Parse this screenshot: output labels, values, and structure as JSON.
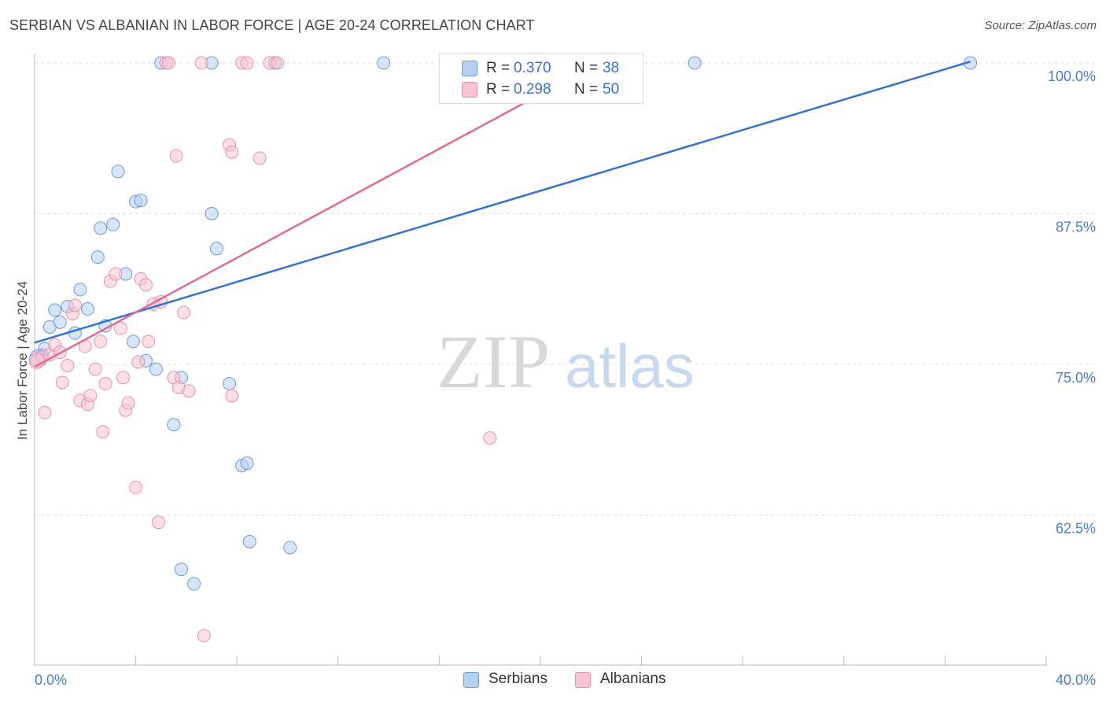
{
  "title": "SERBIAN VS ALBANIAN IN LABOR FORCE | AGE 20-24 CORRELATION CHART",
  "source": "Source: ZipAtlas.com",
  "watermark": {
    "zip": "ZIP",
    "atlas": "atlas"
  },
  "colors": {
    "serbian_fill": "#b8d0f0",
    "serbian_stroke": "#6a9ad8",
    "serbian_line": "#2f72d0",
    "albanian_fill": "#f8c4d4",
    "albanian_stroke": "#e890ac",
    "albanian_line": "#e06a94",
    "grid": "#e0e0e0",
    "tick_label": "#4a7cc7"
  },
  "legend": {
    "serbians": {
      "r_label": "R =",
      "r_value": "0.370",
      "n_label": "N =",
      "n_value": "38"
    },
    "albanians": {
      "r_label": "R =",
      "r_value": "0.298",
      "n_label": "N =",
      "n_value": "50"
    }
  },
  "bottom_legend": {
    "serbians": "Serbians",
    "albanians": "Albanians"
  },
  "chart_data": {
    "type": "scatter",
    "title": "SERBIAN VS ALBANIAN IN LABOR FORCE | AGE 20-24 CORRELATION CHART",
    "xlabel": "",
    "ylabel": "In Labor Force | Age 20-24",
    "xlim": [
      0,
      40
    ],
    "ylim": [
      50.5,
      101.5
    ],
    "x_tick_labels": [
      "0.0%",
      "40.0%"
    ],
    "y_ticks": [
      62.5,
      75.0,
      87.5,
      100.0
    ],
    "y_tick_labels": [
      "62.5%",
      "75.0%",
      "87.5%",
      "100.0%"
    ],
    "series": [
      {
        "name": "Serbians",
        "points": [
          [
            0.3,
            75.8
          ],
          [
            0.4,
            76.3
          ],
          [
            0.6,
            78.1
          ],
          [
            0.8,
            79.5
          ],
          [
            1.0,
            78.5
          ],
          [
            1.3,
            79.8
          ],
          [
            1.6,
            77.6
          ],
          [
            1.8,
            81.2
          ],
          [
            2.1,
            79.6
          ],
          [
            2.5,
            83.9
          ],
          [
            2.6,
            86.3
          ],
          [
            2.8,
            78.2
          ],
          [
            3.1,
            86.6
          ],
          [
            3.3,
            91.0
          ],
          [
            3.6,
            82.5
          ],
          [
            3.9,
            76.9
          ],
          [
            4.0,
            88.5
          ],
          [
            4.2,
            88.6
          ],
          [
            4.4,
            75.3
          ],
          [
            4.8,
            74.6
          ],
          [
            5.0,
            100.0
          ],
          [
            5.5,
            70.0
          ],
          [
            5.8,
            73.9
          ],
          [
            5.8,
            58.0
          ],
          [
            6.3,
            56.8
          ],
          [
            7.0,
            100.0
          ],
          [
            7.0,
            87.5
          ],
          [
            7.2,
            84.6
          ],
          [
            7.7,
            73.4
          ],
          [
            8.2,
            66.6
          ],
          [
            8.4,
            66.8
          ],
          [
            8.5,
            60.3
          ],
          [
            9.5,
            100.0
          ],
          [
            10.1,
            59.8
          ],
          [
            13.8,
            100.0
          ],
          [
            16.3,
            100.0
          ],
          [
            26.1,
            100.0
          ],
          [
            37.0,
            100.0
          ]
        ]
      },
      {
        "name": "Albanians",
        "points": [
          [
            0.1,
            75.3
          ],
          [
            0.3,
            75.6
          ],
          [
            0.4,
            71.0
          ],
          [
            0.6,
            75.8
          ],
          [
            0.8,
            76.6
          ],
          [
            1.0,
            76.0
          ],
          [
            1.1,
            73.5
          ],
          [
            1.3,
            74.9
          ],
          [
            1.5,
            79.2
          ],
          [
            1.6,
            79.9
          ],
          [
            1.8,
            72.0
          ],
          [
            2.0,
            76.5
          ],
          [
            2.1,
            71.7
          ],
          [
            2.2,
            72.4
          ],
          [
            2.4,
            74.6
          ],
          [
            2.6,
            76.9
          ],
          [
            2.7,
            69.4
          ],
          [
            2.8,
            73.4
          ],
          [
            3.0,
            81.9
          ],
          [
            3.2,
            82.5
          ],
          [
            3.4,
            78.0
          ],
          [
            3.5,
            73.9
          ],
          [
            3.6,
            71.2
          ],
          [
            3.7,
            71.8
          ],
          [
            4.0,
            64.8
          ],
          [
            4.1,
            75.2
          ],
          [
            4.2,
            82.1
          ],
          [
            4.4,
            81.6
          ],
          [
            4.5,
            76.9
          ],
          [
            4.7,
            80.0
          ],
          [
            4.9,
            61.9
          ],
          [
            5.0,
            80.2
          ],
          [
            5.2,
            100.0
          ],
          [
            5.5,
            73.9
          ],
          [
            5.6,
            92.3
          ],
          [
            5.7,
            73.1
          ],
          [
            5.9,
            79.3
          ],
          [
            6.1,
            72.8
          ],
          [
            6.6,
            100.0
          ],
          [
            6.7,
            52.5
          ],
          [
            7.7,
            93.2
          ],
          [
            7.8,
            92.6
          ],
          [
            7.8,
            72.4
          ],
          [
            8.2,
            100.0
          ],
          [
            8.4,
            100.0
          ],
          [
            8.9,
            92.1
          ],
          [
            9.3,
            100.0
          ],
          [
            9.6,
            100.0
          ],
          [
            18.0,
            68.9
          ],
          [
            5.3,
            100.0
          ]
        ]
      }
    ],
    "trendlines": [
      {
        "series": "Serbians",
        "x": [
          0,
          40
        ],
        "y": [
          76.8,
          102.0
        ],
        "solid_until": 37.0
      },
      {
        "series": "Albanians",
        "x": [
          0,
          40
        ],
        "y": [
          74.8,
          120.0
        ],
        "solid_until": 20.0
      }
    ]
  }
}
